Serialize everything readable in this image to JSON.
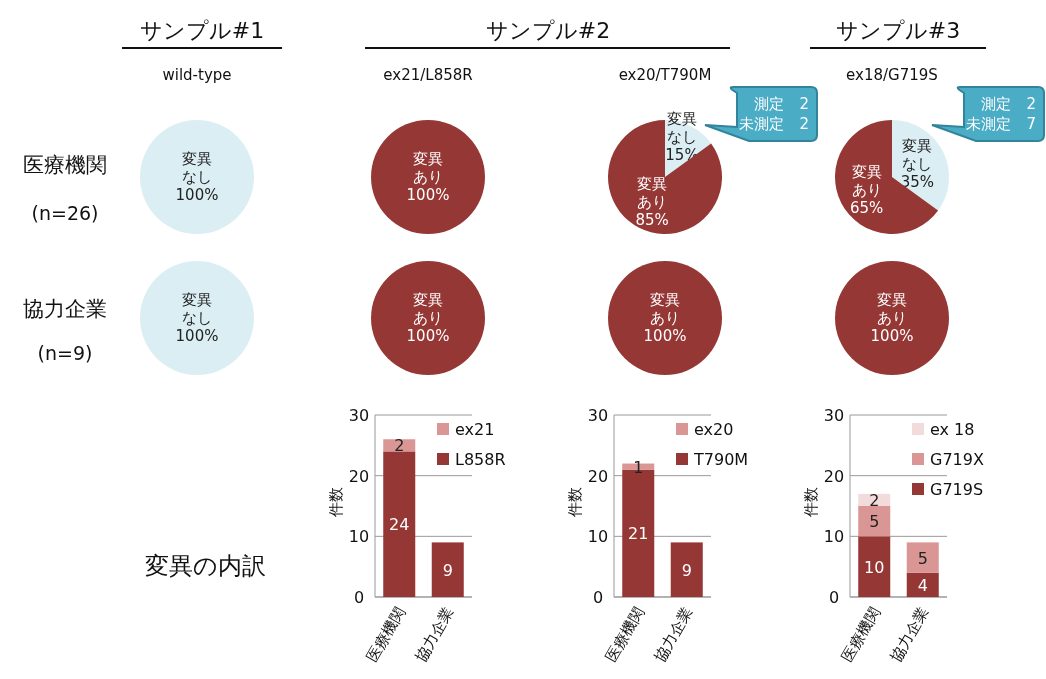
{
  "chart_data": [
    {
      "type": "other",
      "annotations": [
        "サンプル#1",
        "サンプル#2",
        "サンプル#3",
        "医療機関",
        "(n=26)",
        "協力企業",
        "(n=9)",
        "変異の内訳"
      ]
    },
    {
      "type": "pie",
      "title": "wild-type",
      "categories": [
        "変異なし"
      ],
      "values": [
        100
      ],
      "colors": [
        "#dbeef3"
      ],
      "value_labels": [
        "100%"
      ]
    },
    {
      "type": "pie",
      "title": "ex21/L858R",
      "categories": [
        "変異あり"
      ],
      "values": [
        100
      ],
      "colors": [
        "#953735"
      ],
      "value_labels": [
        "100%"
      ]
    },
    {
      "type": "pie",
      "title": "ex20/T790M",
      "categories": [
        "変異なし",
        "変異あり"
      ],
      "values": [
        15,
        85
      ],
      "colors": [
        "#dbeef3",
        "#953735"
      ],
      "value_labels": [
        "15%",
        "85%"
      ],
      "annotations": [
        "測定　2",
        "未測定　2"
      ]
    },
    {
      "type": "pie",
      "title": "ex18/G719S",
      "categories": [
        "変異なし",
        "変異あり"
      ],
      "values": [
        35,
        65
      ],
      "colors": [
        "#dbeef3",
        "#953735"
      ],
      "value_labels": [
        "35%",
        "65%"
      ],
      "annotations": [
        "測定　2",
        "未測定　7"
      ]
    },
    {
      "type": "pie",
      "categories": [
        "変異なし"
      ],
      "values": [
        100
      ],
      "colors": [
        "#dbeef3"
      ],
      "value_labels": [
        "100%"
      ]
    },
    {
      "type": "pie",
      "categories": [
        "変異あり"
      ],
      "values": [
        100
      ],
      "colors": [
        "#953735"
      ],
      "value_labels": [
        "100%"
      ]
    },
    {
      "type": "pie",
      "categories": [
        "変異あり"
      ],
      "values": [
        100
      ],
      "colors": [
        "#953735"
      ],
      "value_labels": [
        "100%"
      ]
    },
    {
      "type": "pie",
      "categories": [
        "変異あり"
      ],
      "values": [
        100
      ],
      "colors": [
        "#953735"
      ],
      "value_labels": [
        "100%"
      ]
    },
    {
      "type": "bar",
      "stacked": true,
      "ylabel": "件数",
      "categories": [
        "医療機関",
        "協力企業"
      ],
      "ylim": [
        0,
        30
      ],
      "yticks": [
        0,
        10,
        20,
        30
      ],
      "grid": "y",
      "legend": "top right",
      "data_labels": true,
      "series": [
        {
          "name": "L858R",
          "color": "#953735",
          "values": [
            24,
            9
          ]
        },
        {
          "name": "ex21",
          "color": "#d99694",
          "values": [
            2,
            null
          ]
        }
      ]
    },
    {
      "type": "bar",
      "stacked": true,
      "ylabel": "件数",
      "categories": [
        "医療機関",
        "協力企業"
      ],
      "ylim": [
        0,
        30
      ],
      "yticks": [
        0,
        10,
        20,
        30
      ],
      "grid": "y",
      "legend": "top right",
      "data_labels": true,
      "series": [
        {
          "name": "T790M",
          "color": "#953735",
          "values": [
            21,
            9
          ]
        },
        {
          "name": "ex20",
          "color": "#d99694",
          "values": [
            1,
            null
          ]
        }
      ]
    },
    {
      "type": "bar",
      "stacked": true,
      "ylabel": "件数",
      "categories": [
        "医療機関",
        "協力企業"
      ],
      "ylim": [
        0,
        30
      ],
      "yticks": [
        0,
        10,
        20,
        30
      ],
      "grid": "y",
      "legend": "top right",
      "data_labels": true,
      "series": [
        {
          "name": "G719S",
          "color": "#953735",
          "values": [
            10,
            4
          ]
        },
        {
          "name": "G719X",
          "color": "#d99694",
          "values": [
            5,
            5
          ]
        },
        {
          "name": "ex 18",
          "color": "#f2dcdb",
          "values": [
            2,
            null
          ]
        }
      ]
    }
  ]
}
